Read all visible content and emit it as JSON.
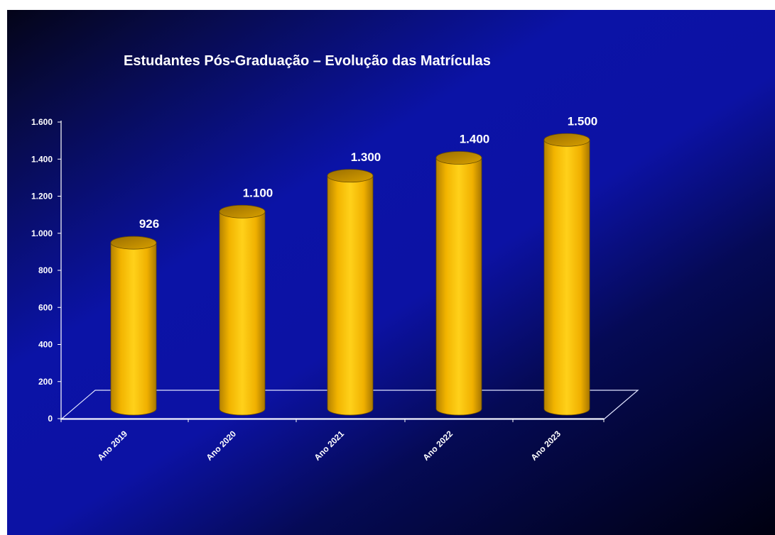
{
  "chart_data": {
    "type": "bar",
    "style": "3d-cylinder",
    "title": "Estudantes Pós-Graduação – Evolução das Matrículas",
    "categories": [
      "Ano 2019",
      "Ano 2020",
      "Ano 2021",
      "Ano 2022",
      "Ano 2023"
    ],
    "values": [
      926,
      1100,
      1300,
      1400,
      1500
    ],
    "value_labels": [
      "926",
      "1.100",
      "1.300",
      "1.400",
      "1.500"
    ],
    "yticks": [
      0,
      200,
      400,
      600,
      800,
      1000,
      1200,
      1400,
      1600
    ],
    "ytick_labels": [
      "0",
      "200",
      "400",
      "600",
      "800",
      "1.000",
      "1.200",
      "1.400",
      "1.600"
    ],
    "ylim": [
      0,
      1600
    ],
    "grid": false,
    "legend": "none",
    "colors": {
      "bar": "#ffc000",
      "bar_dark": "#b88400",
      "text": "#ffffff",
      "floor": "#e0e4ff"
    }
  }
}
